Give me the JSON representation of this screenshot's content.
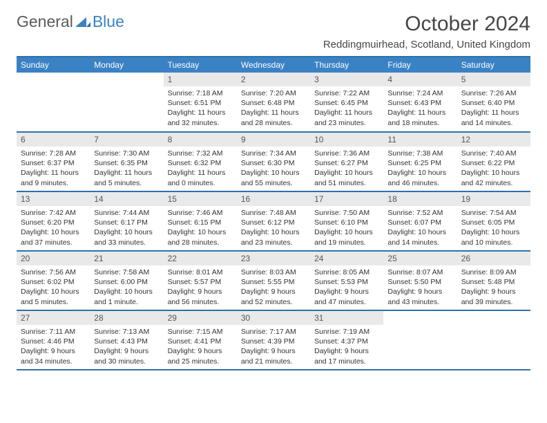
{
  "logo": {
    "part1": "General",
    "part2": "Blue"
  },
  "title": "October 2024",
  "location": "Reddingmuirhead, Scotland, United Kingdom",
  "colors": {
    "header_bg": "#3b82c4",
    "header_text": "#ffffff",
    "daynum_bg": "#e9e9e9",
    "border": "#2e71a8",
    "logo_gray": "#5a5a5a",
    "logo_blue": "#3b82c4",
    "text": "#333333",
    "title_text": "#464646"
  },
  "typography": {
    "month_title_pt": 30,
    "location_pt": 15,
    "header_pt": 12,
    "daynum_pt": 12,
    "cell_pt": 10.5,
    "family": "Arial"
  },
  "layout": {
    "columns": 7,
    "rows": 5,
    "start_day_index": 2
  },
  "day_headers": [
    "Sunday",
    "Monday",
    "Tuesday",
    "Wednesday",
    "Thursday",
    "Friday",
    "Saturday"
  ],
  "weeks": [
    [
      null,
      null,
      {
        "d": "1",
        "sr": "7:18 AM",
        "ss": "6:51 PM",
        "dl": "11 hours and 32 minutes."
      },
      {
        "d": "2",
        "sr": "7:20 AM",
        "ss": "6:48 PM",
        "dl": "11 hours and 28 minutes."
      },
      {
        "d": "3",
        "sr": "7:22 AM",
        "ss": "6:45 PM",
        "dl": "11 hours and 23 minutes."
      },
      {
        "d": "4",
        "sr": "7:24 AM",
        "ss": "6:43 PM",
        "dl": "11 hours and 18 minutes."
      },
      {
        "d": "5",
        "sr": "7:26 AM",
        "ss": "6:40 PM",
        "dl": "11 hours and 14 minutes."
      }
    ],
    [
      {
        "d": "6",
        "sr": "7:28 AM",
        "ss": "6:37 PM",
        "dl": "11 hours and 9 minutes."
      },
      {
        "d": "7",
        "sr": "7:30 AM",
        "ss": "6:35 PM",
        "dl": "11 hours and 5 minutes."
      },
      {
        "d": "8",
        "sr": "7:32 AM",
        "ss": "6:32 PM",
        "dl": "11 hours and 0 minutes."
      },
      {
        "d": "9",
        "sr": "7:34 AM",
        "ss": "6:30 PM",
        "dl": "10 hours and 55 minutes."
      },
      {
        "d": "10",
        "sr": "7:36 AM",
        "ss": "6:27 PM",
        "dl": "10 hours and 51 minutes."
      },
      {
        "d": "11",
        "sr": "7:38 AM",
        "ss": "6:25 PM",
        "dl": "10 hours and 46 minutes."
      },
      {
        "d": "12",
        "sr": "7:40 AM",
        "ss": "6:22 PM",
        "dl": "10 hours and 42 minutes."
      }
    ],
    [
      {
        "d": "13",
        "sr": "7:42 AM",
        "ss": "6:20 PM",
        "dl": "10 hours and 37 minutes."
      },
      {
        "d": "14",
        "sr": "7:44 AM",
        "ss": "6:17 PM",
        "dl": "10 hours and 33 minutes."
      },
      {
        "d": "15",
        "sr": "7:46 AM",
        "ss": "6:15 PM",
        "dl": "10 hours and 28 minutes."
      },
      {
        "d": "16",
        "sr": "7:48 AM",
        "ss": "6:12 PM",
        "dl": "10 hours and 23 minutes."
      },
      {
        "d": "17",
        "sr": "7:50 AM",
        "ss": "6:10 PM",
        "dl": "10 hours and 19 minutes."
      },
      {
        "d": "18",
        "sr": "7:52 AM",
        "ss": "6:07 PM",
        "dl": "10 hours and 14 minutes."
      },
      {
        "d": "19",
        "sr": "7:54 AM",
        "ss": "6:05 PM",
        "dl": "10 hours and 10 minutes."
      }
    ],
    [
      {
        "d": "20",
        "sr": "7:56 AM",
        "ss": "6:02 PM",
        "dl": "10 hours and 5 minutes."
      },
      {
        "d": "21",
        "sr": "7:58 AM",
        "ss": "6:00 PM",
        "dl": "10 hours and 1 minute."
      },
      {
        "d": "22",
        "sr": "8:01 AM",
        "ss": "5:57 PM",
        "dl": "9 hours and 56 minutes."
      },
      {
        "d": "23",
        "sr": "8:03 AM",
        "ss": "5:55 PM",
        "dl": "9 hours and 52 minutes."
      },
      {
        "d": "24",
        "sr": "8:05 AM",
        "ss": "5:53 PM",
        "dl": "9 hours and 47 minutes."
      },
      {
        "d": "25",
        "sr": "8:07 AM",
        "ss": "5:50 PM",
        "dl": "9 hours and 43 minutes."
      },
      {
        "d": "26",
        "sr": "8:09 AM",
        "ss": "5:48 PM",
        "dl": "9 hours and 39 minutes."
      }
    ],
    [
      {
        "d": "27",
        "sr": "7:11 AM",
        "ss": "4:46 PM",
        "dl": "9 hours and 34 minutes."
      },
      {
        "d": "28",
        "sr": "7:13 AM",
        "ss": "4:43 PM",
        "dl": "9 hours and 30 minutes."
      },
      {
        "d": "29",
        "sr": "7:15 AM",
        "ss": "4:41 PM",
        "dl": "9 hours and 25 minutes."
      },
      {
        "d": "30",
        "sr": "7:17 AM",
        "ss": "4:39 PM",
        "dl": "9 hours and 21 minutes."
      },
      {
        "d": "31",
        "sr": "7:19 AM",
        "ss": "4:37 PM",
        "dl": "9 hours and 17 minutes."
      },
      null,
      null
    ]
  ],
  "labels": {
    "sunrise": "Sunrise:",
    "sunset": "Sunset:",
    "daylight": "Daylight:"
  }
}
